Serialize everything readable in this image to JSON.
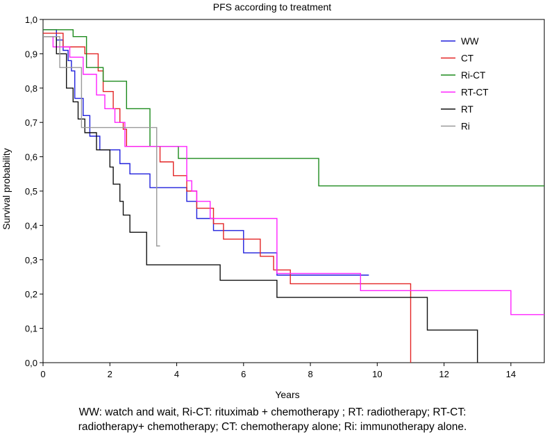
{
  "chart_data": {
    "type": "line",
    "step": true,
    "title": "PFS according to treatment",
    "xlabel": "Years",
    "ylabel": "Survival probability",
    "xlim": [
      0,
      15
    ],
    "ylim": [
      0,
      1.0
    ],
    "xticks": [
      0,
      2,
      4,
      6,
      8,
      10,
      12,
      14
    ],
    "yticks": [
      0.0,
      0.1,
      0.2,
      0.3,
      0.4,
      0.5,
      0.6,
      0.7,
      0.8,
      0.9,
      1.0
    ],
    "xtick_labels": [
      "0",
      "2",
      "4",
      "6",
      "8",
      "10",
      "12",
      "14"
    ],
    "ytick_labels": [
      "0,0",
      "0,1",
      "0,2",
      "0,3",
      "0,4",
      "0,5",
      "0,6",
      "0,7",
      "0,8",
      "0,9",
      "1,0"
    ],
    "grid": false,
    "legend_position": "top-right",
    "series": [
      {
        "name": "WW",
        "color": "#1f1fdc",
        "x": [
          0,
          0.4,
          0.6,
          0.75,
          0.85,
          0.95,
          1.2,
          1.4,
          1.7,
          2.15,
          2.3,
          2.6,
          3.2,
          4.3,
          4.6,
          5.1,
          6.0,
          7.0,
          9.75
        ],
        "y": [
          0.97,
          0.94,
          0.91,
          0.88,
          0.85,
          0.77,
          0.72,
          0.66,
          0.62,
          0.62,
          0.58,
          0.55,
          0.51,
          0.47,
          0.42,
          0.385,
          0.32,
          0.255,
          0.255
        ]
      },
      {
        "name": "CT",
        "color": "#e32424",
        "x": [
          0,
          0.3,
          0.6,
          1.25,
          1.65,
          1.8,
          2.1,
          2.3,
          2.4,
          2.5,
          3.0,
          3.5,
          3.9,
          4.3,
          4.6,
          5.1,
          5.4,
          6.5,
          6.9,
          7.4,
          11.0
        ],
        "y": [
          0.96,
          0.96,
          0.92,
          0.9,
          0.85,
          0.79,
          0.74,
          0.7,
          0.68,
          0.63,
          0.63,
          0.585,
          0.545,
          0.5,
          0.45,
          0.405,
          0.36,
          0.31,
          0.27,
          0.23,
          0.0
        ]
      },
      {
        "name": "Ri-CT",
        "color": "#1c8a1c",
        "x": [
          0,
          0.9,
          1.3,
          1.8,
          2.5,
          3.2,
          4.05,
          8.25,
          15.0
        ],
        "y": [
          0.97,
          0.95,
          0.86,
          0.82,
          0.74,
          0.63,
          0.595,
          0.515,
          0.515
        ]
      },
      {
        "name": "RT-CT",
        "color": "#ff20ff",
        "x": [
          0,
          0.3,
          0.8,
          1.2,
          1.6,
          1.85,
          2.15,
          2.45,
          4.3,
          4.45,
          4.6,
          5.0,
          7.0,
          9.4,
          9.5,
          14.0,
          15.0
        ],
        "y": [
          0.95,
          0.92,
          0.89,
          0.84,
          0.78,
          0.74,
          0.7,
          0.63,
          0.53,
          0.5,
          0.47,
          0.42,
          0.26,
          0.26,
          0.21,
          0.14,
          0.14
        ]
      },
      {
        "name": "RT",
        "color": "#111111",
        "x": [
          0,
          0.4,
          0.7,
          0.9,
          1.05,
          1.25,
          1.6,
          1.9,
          2.0,
          2.1,
          2.3,
          2.4,
          2.6,
          3.1,
          3.9,
          5.3,
          7.0,
          11.5,
          13.0
        ],
        "y": [
          0.95,
          0.9,
          0.8,
          0.76,
          0.71,
          0.67,
          0.62,
          0.62,
          0.57,
          0.52,
          0.47,
          0.43,
          0.38,
          0.285,
          0.285,
          0.24,
          0.19,
          0.095,
          0.0
        ]
      },
      {
        "name": "Ri",
        "color": "#9a9a9a",
        "x": [
          0,
          0.5,
          1.15,
          3.4,
          3.5
        ],
        "y": [
          0.95,
          0.86,
          0.685,
          0.34,
          0.34
        ]
      }
    ]
  },
  "caption": {
    "line1": "WW: watch and wait,  Ri-CT: rituximab + chemotherapy ; RT: radiotherapy; RT-CT:",
    "line2": "radiotherapy+ chemotherapy; CT: chemotherapy alone; Ri: immunotherapy alone."
  }
}
